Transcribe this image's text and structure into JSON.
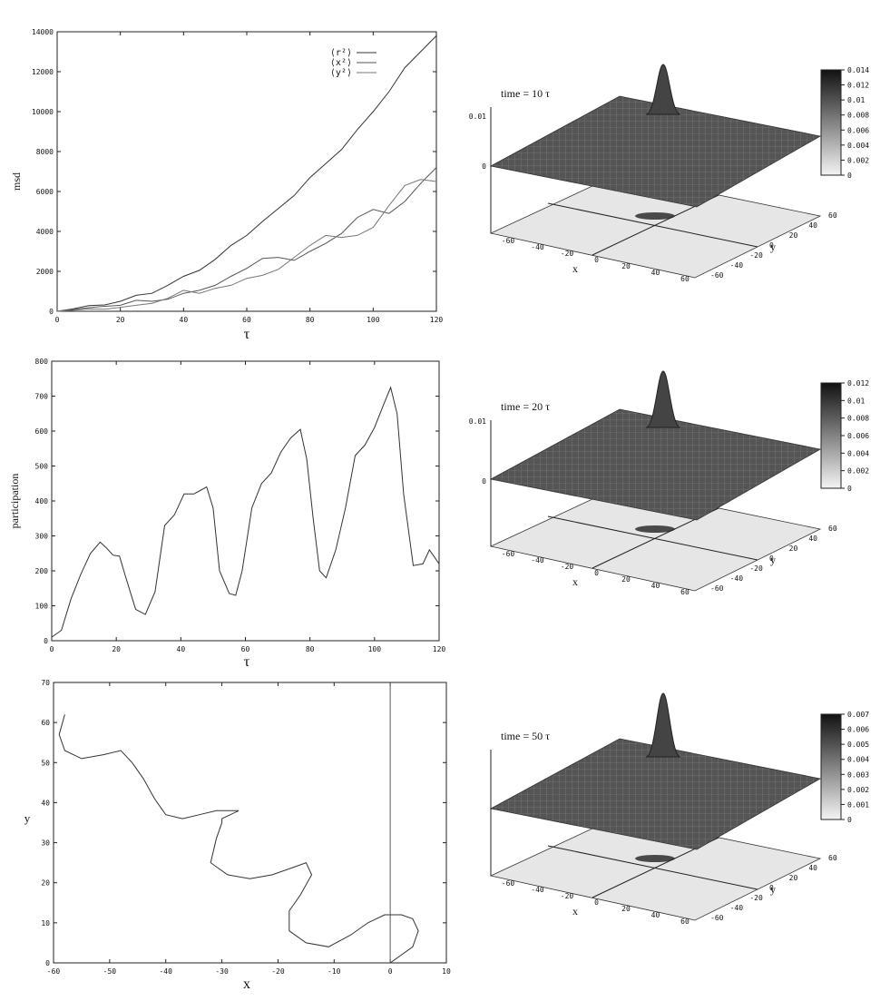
{
  "chart_data": [
    {
      "type": "line",
      "ylabel": "msd",
      "xlabel": "τ",
      "xlim": [
        0,
        120
      ],
      "ylim": [
        0,
        14000
      ],
      "xticks": [
        "0",
        "20",
        "40",
        "60",
        "80",
        "100",
        "120"
      ],
      "yticks": [
        "0",
        "2000",
        "4000",
        "6000",
        "8000",
        "10000",
        "12000",
        "14000"
      ],
      "legend_position": "top-right",
      "series": [
        {
          "name": "⟨r²⟩",
          "x": [
            0,
            5,
            10,
            15,
            20,
            25,
            30,
            35,
            40,
            45,
            50,
            55,
            60,
            65,
            70,
            75,
            80,
            85,
            90,
            95,
            100,
            105,
            110,
            115,
            120
          ],
          "y": [
            0,
            120,
            280,
            320,
            500,
            800,
            900,
            1300,
            1750,
            2050,
            2600,
            3300,
            3800,
            4500,
            5150,
            5800,
            6700,
            7400,
            8100,
            9100,
            10000,
            11000,
            12200,
            13000,
            13800
          ]
        },
        {
          "name": "⟨x²⟩",
          "x": [
            0,
            5,
            10,
            15,
            20,
            25,
            30,
            35,
            40,
            45,
            50,
            55,
            60,
            65,
            70,
            75,
            80,
            85,
            90,
            95,
            100,
            105,
            110,
            115,
            120
          ],
          "y": [
            0,
            80,
            180,
            250,
            300,
            550,
            500,
            600,
            900,
            1050,
            1300,
            1750,
            2150,
            2650,
            2700,
            2550,
            3000,
            3400,
            3900,
            4700,
            5100,
            4900,
            5500,
            6400,
            7200
          ]
        },
        {
          "name": "⟨y²⟩",
          "x": [
            0,
            5,
            10,
            15,
            20,
            25,
            30,
            35,
            40,
            45,
            50,
            55,
            60,
            65,
            70,
            75,
            80,
            85,
            90,
            95,
            100,
            105,
            110,
            115,
            120
          ],
          "y": [
            0,
            50,
            120,
            100,
            200,
            300,
            400,
            650,
            1050,
            900,
            1150,
            1300,
            1650,
            1800,
            2100,
            2700,
            3300,
            3800,
            3700,
            3800,
            4200,
            5300,
            6300,
            6600,
            6500
          ]
        }
      ]
    },
    {
      "type": "line",
      "ylabel": "participation",
      "xlabel": "τ",
      "xlim": [
        0,
        120
      ],
      "ylim": [
        0,
        800
      ],
      "xticks": [
        "0",
        "20",
        "40",
        "60",
        "80",
        "100",
        "120"
      ],
      "yticks": [
        "0",
        "100",
        "200",
        "300",
        "400",
        "500",
        "600",
        "700",
        "800"
      ],
      "series": [
        {
          "x": [
            0,
            3,
            6,
            9,
            12,
            15,
            17,
            19,
            21,
            23,
            26,
            29,
            32,
            35,
            38,
            41,
            44,
            46,
            48,
            50,
            52,
            55,
            57,
            59,
            62,
            65,
            68,
            71,
            74,
            77,
            79,
            81,
            83,
            85,
            88,
            91,
            94,
            97,
            100,
            103,
            105,
            107,
            109,
            112,
            115,
            117,
            120
          ],
          "y": [
            10,
            30,
            120,
            190,
            250,
            282,
            265,
            245,
            242,
            180,
            90,
            75,
            140,
            330,
            360,
            420,
            420,
            430,
            440,
            380,
            200,
            135,
            130,
            200,
            380,
            450,
            480,
            540,
            580,
            605,
            520,
            350,
            200,
            180,
            260,
            380,
            530,
            560,
            610,
            680,
            725,
            650,
            420,
            215,
            220,
            260,
            220
          ]
        }
      ]
    },
    {
      "type": "line",
      "xlabel": "x",
      "ylabel": "y",
      "xlim": [
        -60,
        10
      ],
      "ylim": [
        0,
        70
      ],
      "xticks": [
        "-60",
        "-50",
        "-40",
        "-30",
        "-20",
        "-10",
        "0",
        "10"
      ],
      "yticks": [
        "0",
        "10",
        "20",
        "30",
        "40",
        "50",
        "60",
        "70"
      ],
      "series": [
        {
          "x": [
            -58,
            -59,
            -58,
            -55,
            -51,
            -48,
            -46,
            -44,
            -42,
            -40,
            -37,
            -34,
            -31,
            -29,
            -28,
            -27,
            -30,
            -30,
            -31,
            -32,
            -29,
            -25,
            -21,
            -17,
            -15,
            -14,
            -16,
            -18,
            -18,
            -15,
            -11,
            -7,
            -4,
            -1,
            2,
            4,
            5,
            4,
            1,
            0
          ],
          "y": [
            62,
            57,
            53,
            51,
            52,
            53,
            50,
            46,
            41,
            37,
            36,
            37,
            38,
            38,
            38,
            38,
            36,
            35,
            31,
            25,
            22,
            21,
            22,
            24,
            25,
            22,
            17,
            13,
            8,
            5,
            4,
            7,
            10,
            12,
            12,
            11,
            8,
            4,
            1,
            0
          ]
        },
        {
          "x": [
            0,
            0
          ],
          "y": [
            0,
            70
          ]
        }
      ]
    },
    {
      "type": "heatmap",
      "title": "time = 10 τ",
      "xlabel": "x",
      "ylabel": "y",
      "xticks": [
        "-60",
        "-40",
        "-20",
        "0",
        "20",
        "40",
        "60"
      ],
      "yticks": [
        "-60",
        "-40",
        "-20",
        "0",
        "20",
        "40",
        "60"
      ],
      "zticks": [
        "0",
        "0.01"
      ],
      "colorbar": [
        "0.014",
        "0.012",
        "0.01",
        "0.008",
        "0.006",
        "0.004",
        "0.002",
        "0"
      ]
    },
    {
      "type": "heatmap",
      "title": "time = 20 τ",
      "xlabel": "x",
      "ylabel": "y",
      "xticks": [
        "-60",
        "-40",
        "-20",
        "0",
        "20",
        "40",
        "60"
      ],
      "yticks": [
        "-60",
        "-40",
        "-20",
        "0",
        "20",
        "40",
        "60"
      ],
      "zticks": [
        "0",
        "0.01"
      ],
      "colorbar": [
        "0.012",
        "0.01",
        "0.008",
        "0.006",
        "0.004",
        "0.002",
        "0"
      ]
    },
    {
      "type": "heatmap",
      "title": "time = 50 τ",
      "xlabel": "x",
      "ylabel": "y",
      "xticks": [
        "-60",
        "-40",
        "-20",
        "0",
        "20",
        "40",
        "60"
      ],
      "yticks": [
        "-60",
        "-40",
        "-20",
        "0",
        "20",
        "40",
        "60"
      ],
      "zticks": [],
      "colorbar": [
        "0.007",
        "0.006",
        "0.005",
        "0.004",
        "0.003",
        "0.002",
        "0.001",
        "0"
      ]
    }
  ]
}
